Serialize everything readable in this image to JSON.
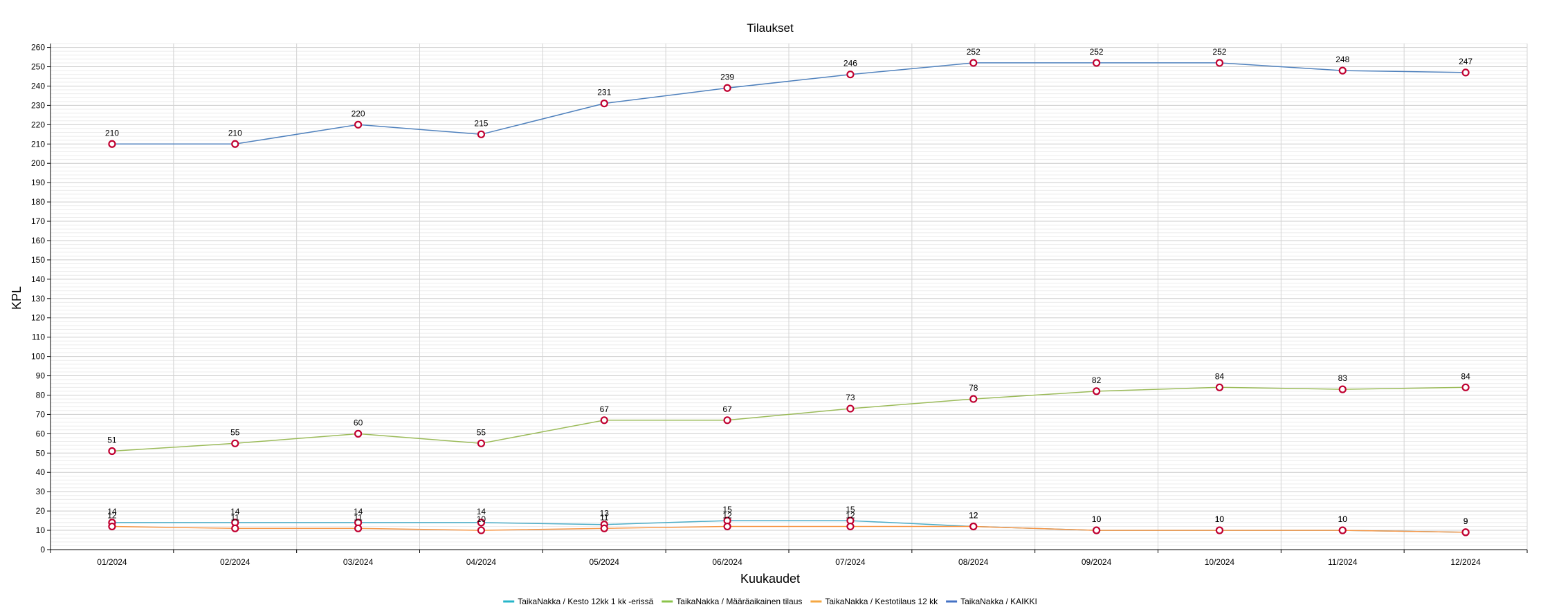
{
  "chart_data": {
    "type": "line",
    "title": "Tilaukset",
    "xlabel": "Kuukaudet",
    "ylabel": "KPL",
    "categories": [
      "01/2024",
      "02/2024",
      "03/2024",
      "04/2024",
      "05/2024",
      "06/2024",
      "07/2024",
      "08/2024",
      "09/2024",
      "10/2024",
      "11/2024",
      "12/2024"
    ],
    "ylim": [
      0,
      262
    ],
    "ytick_step": 10,
    "grid": true,
    "legend_position": "bottom",
    "series": [
      {
        "name": "TaikaNakka / KAIKKI",
        "color": "#4f81bd",
        "legend_color": "#4472c4",
        "values": [
          210,
          210,
          220,
          215,
          231,
          239,
          246,
          252,
          252,
          252,
          248,
          247
        ]
      },
      {
        "name": "TaikaNakka / Määräaikainen tilaus",
        "color": "#9bbb59",
        "legend_color": "#8bc34a",
        "values": [
          51,
          55,
          60,
          55,
          67,
          67,
          73,
          78,
          82,
          84,
          83,
          84
        ]
      },
      {
        "name": "TaikaNakka / Kesto 12kk 1 kk -erissä",
        "color": "#4bacc6",
        "legend_color": "#26b5c9",
        "values": [
          14,
          14,
          14,
          14,
          13,
          15,
          15,
          12,
          10,
          10,
          10,
          9
        ]
      },
      {
        "name": "TaikaNakka / Kestotilaus 12 kk",
        "color": "#f79646",
        "legend_color": "#f5a742",
        "values": [
          12,
          11,
          11,
          10,
          11,
          12,
          12,
          12,
          10,
          10,
          10,
          9
        ]
      }
    ],
    "legend_order": [
      2,
      1,
      3,
      0
    ],
    "marker_color": "#c00030"
  }
}
